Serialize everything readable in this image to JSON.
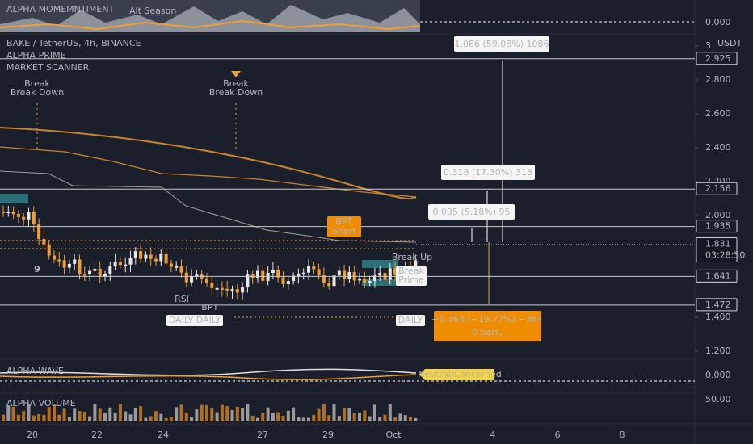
{
  "header": {
    "symbol": "BAKE / TetherUS, 4h, BINANCE",
    "indicator_1": "ALPHA PRIME",
    "indicator_2": "MARKET SCANNER",
    "currency": "USDT"
  },
  "top_panel": {
    "title": "ALPHA MOMEMNTIMENT",
    "value": "0.000",
    "badge": "Alt Season"
  },
  "price_axis": {
    "ticks": [
      3,
      {
        "value": 2.8,
        "label": "2.800"
      },
      {
        "value": 2.6,
        "label": "2.600"
      },
      {
        "value": 2.4,
        "label": "2.400"
      },
      {
        "value": 2.2,
        "label": "2.200"
      },
      {
        "value": 2.0,
        "label": "2.000"
      },
      {
        "value": 1.4,
        "label": "1.400"
      },
      {
        "value": 1.2,
        "label": "1.200"
      }
    ]
  },
  "price_tags": [
    {
      "value": 2.925,
      "label": "2.925"
    },
    {
      "value": 2.156,
      "label": "2.156"
    },
    {
      "value": 1.935,
      "label": "1.935"
    },
    {
      "value": 1.831,
      "label": "1.831",
      "countdown": "03:28:50"
    },
    {
      "value": 1.641,
      "label": "1.641"
    },
    {
      "value": 1.472,
      "label": "1.472"
    }
  ],
  "measurements": [
    "1.086 (59.08%) 1086",
    "0.318 (17.30%) 318",
    "0.095 (5.18%) 95"
  ],
  "orange_measure": {
    "line_1": "−0.364 (−19.77%) −364",
    "line_2": "0 bars,"
  },
  "annotations": {
    "break_down_1": [
      "Break",
      "Break Down"
    ],
    "break_down_2": [
      "Break",
      "Break Down"
    ],
    "bpt_short": [
      "BPT",
      "Short"
    ],
    "break_up": "Break Up",
    "break_prime": [
      "Break",
      "Prime"
    ],
    "daily": [
      "DAILY",
      "DAILY",
      "DAILY"
    ],
    "rsi": "RSI",
    "bpt": ".BPT",
    "count": "9"
  },
  "wave_panel": {
    "title": "ALPHA-WAVE",
    "value": "0.000",
    "status": "Neutral/Concerned"
  },
  "volume_panel": {
    "title": "ALPHA VOLUME",
    "value": "50.00"
  },
  "time_axis": [
    "20",
    "22",
    "24",
    "27",
    "29",
    "Oct",
    "4",
    "6",
    "8"
  ]
}
